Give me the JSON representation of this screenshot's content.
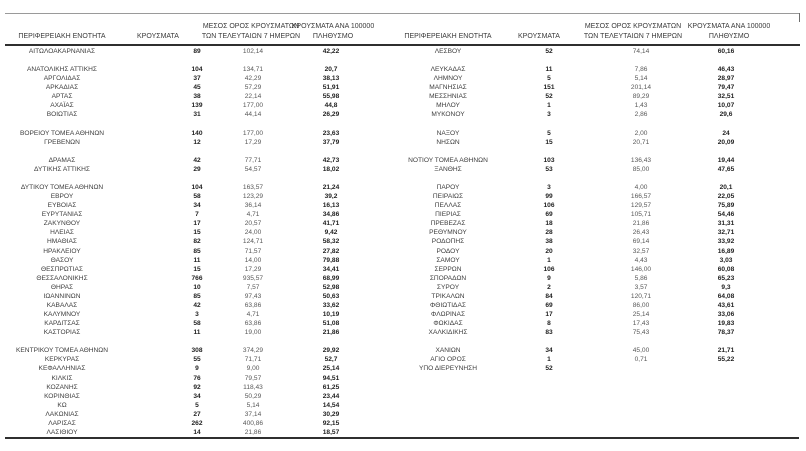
{
  "meta": {
    "description_label": "Πίνακας κατανομής κρουσμάτων ανά Περιφερειακή Ενότητα"
  },
  "colors": {
    "background": "#ffffff",
    "text": "#3d3d3d",
    "bold_text": "#1f1f1f",
    "muted_text": "#585858",
    "rule_dark": "#2f2f2f",
    "rule_light": "#9a9a9a"
  },
  "headers": {
    "region": "ΠΕΡΙΦΕΡΕΙΑΚΗ ΕΝΟΤΗΤΑ",
    "cases": "ΚΡΟΥΣΜΑΤΑ",
    "avg7_line1": "ΜΕΣΟΣ ΟΡΟΣ ΚΡΟΥΣΜΑΤΩΝ",
    "avg7_line2": "ΤΩΝ ΤΕΛΕΥΤΑΙΩΝ 7 ΗΜΕΡΩΝ",
    "per100k_line1": "ΚΡΟΥΣΜΑΤΑ ΑΝΑ 100000",
    "per100k_line2": "ΠΛΗΘΥΣΜΟ"
  },
  "left_rows": [
    [
      "ΑΙΤΩΛΟΑΚΑΡΝΑΝΙΑΣ",
      "89",
      "102,14",
      "42,22"
    ],
    null,
    [
      "ΑΝΑΤΟΛΙΚΗΣ ΑΤΤΙΚΗΣ",
      "104",
      "134,71",
      "20,7"
    ],
    [
      "ΑΡΓΟΛΙΔΑΣ",
      "37",
      "42,29",
      "38,13"
    ],
    [
      "ΑΡΚΑΔΙΑΣ",
      "45",
      "57,29",
      "51,91"
    ],
    [
      "ΑΡΤΑΣ",
      "38",
      "22,14",
      "55,98"
    ],
    [
      "ΑΧΑΪΑΣ",
      "139",
      "177,00",
      "44,8"
    ],
    [
      "ΒΟΙΩΤΙΑΣ",
      "31",
      "44,14",
      "26,29"
    ],
    null,
    [
      "ΒΟΡΕΙΟΥ ΤΟΜΕΑ ΑΘΗΝΩΝ",
      "140",
      "177,00",
      "23,63"
    ],
    [
      "ΓΡΕΒΕΝΩΝ",
      "12",
      "17,29",
      "37,79"
    ],
    null,
    [
      "ΔΡΑΜΑΣ",
      "42",
      "77,71",
      "42,73"
    ],
    [
      "ΔΥΤΙΚΗΣ ΑΤΤΙΚΗΣ",
      "29",
      "54,57",
      "18,02"
    ],
    null,
    [
      "ΔΥΤΙΚΟΥ ΤΟΜΕΑ ΑΘΗΝΩΝ",
      "104",
      "163,57",
      "21,24"
    ],
    [
      "ΕΒΡΟΥ",
      "58",
      "123,29",
      "39,2"
    ],
    [
      "ΕΥΒΟΙΑΣ",
      "34",
      "36,14",
      "16,13"
    ],
    [
      "ΕΥΡΥΤΑΝΙΑΣ",
      "7",
      "4,71",
      "34,86"
    ],
    [
      "ΖΑΚΥΝΘΟΥ",
      "17",
      "20,57",
      "41,71"
    ],
    [
      "ΗΛΕΙΑΣ",
      "15",
      "24,00",
      "9,42"
    ],
    [
      "ΗΜΑΘΙΑΣ",
      "82",
      "124,71",
      "58,32"
    ],
    [
      "ΗΡΑΚΛΕΙΟΥ",
      "85",
      "71,57",
      "27,82"
    ],
    [
      "ΘΑΣΟΥ",
      "11",
      "14,00",
      "79,88"
    ],
    [
      "ΘΕΣΠΡΩΤΙΑΣ",
      "15",
      "17,29",
      "34,41"
    ],
    [
      "ΘΕΣΣΑΛΟΝΙΚΗΣ",
      "766",
      "935,57",
      "68,99"
    ],
    [
      "ΘΗΡΑΣ",
      "10",
      "7,57",
      "52,98"
    ],
    [
      "ΙΩΑΝΝΙΝΩΝ",
      "85",
      "97,43",
      "50,63"
    ],
    [
      "ΚΑΒΑΛΑΣ",
      "42",
      "63,86",
      "33,62"
    ],
    [
      "ΚΑΛΥΜΝΟΥ",
      "3",
      "4,71",
      "10,19"
    ],
    [
      "ΚΑΡΔΙΤΣΑΣ",
      "58",
      "63,86",
      "51,08"
    ],
    [
      "ΚΑΣΤΟΡΙΑΣ",
      "11",
      "19,00",
      "21,86"
    ],
    null,
    [
      "ΚΕΝΤΡΙΚΟΥ ΤΟΜΕΑ ΑΘΗΝΩΝ",
      "308",
      "374,29",
      "29,92"
    ],
    [
      "ΚΕΡΚΥΡΑΣ",
      "55",
      "71,71",
      "52,7"
    ],
    [
      "ΚΕΦΑΛΛΗΝΙΑΣ",
      "9",
      "9,00",
      "25,14"
    ],
    [
      "ΚΙΛΚΙΣ",
      "76",
      "79,57",
      "94,51"
    ],
    [
      "ΚΟΖΑΝΗΣ",
      "92",
      "118,43",
      "61,25"
    ],
    [
      "ΚΟΡΙΝΘΙΑΣ",
      "34",
      "50,29",
      "23,44"
    ],
    [
      "ΚΩ",
      "5",
      "5,14",
      "14,54"
    ],
    [
      "ΛΑΚΩΝΙΑΣ",
      "27",
      "37,14",
      "30,29"
    ],
    [
      "ΛΑΡΙΣΑΣ",
      "262",
      "400,86",
      "92,15"
    ],
    [
      "ΛΑΣΙΘΙΟΥ",
      "14",
      "21,86",
      "18,57"
    ]
  ],
  "right_rows": [
    [
      "ΛΕΣΒΟΥ",
      "52",
      "74,14",
      "60,16"
    ],
    null,
    [
      "ΛΕΥΚΑΔΑΣ",
      "11",
      "7,86",
      "46,43"
    ],
    [
      "ΛΗΜΝΟΥ",
      "5",
      "5,14",
      "28,97"
    ],
    [
      "ΜΑΓΝΗΣΙΑΣ",
      "151",
      "201,14",
      "79,47"
    ],
    [
      "ΜΕΣΣΗΝΙΑΣ",
      "52",
      "89,29",
      "32,51"
    ],
    [
      "ΜΗΛΟΥ",
      "1",
      "1,43",
      "10,07"
    ],
    [
      "ΜΥΚΟΝΟΥ",
      "3",
      "2,86",
      "29,6"
    ],
    null,
    [
      "ΝΑΞΟΥ",
      "5",
      "2,00",
      "24"
    ],
    [
      "ΝΗΣΩΝ",
      "15",
      "20,71",
      "20,09"
    ],
    null,
    [
      "ΝΟΤΙΟΥ ΤΟΜΕΑ ΑΘΗΝΩΝ",
      "103",
      "136,43",
      "19,44"
    ],
    [
      "ΞΑΝΘΗΣ",
      "53",
      "85,00",
      "47,65"
    ],
    null,
    [
      "ΠΑΡΟΥ",
      "3",
      "4,00",
      "20,1"
    ],
    [
      "ΠΕΙΡΑΙΩΣ",
      "99",
      "166,57",
      "22,05"
    ],
    [
      "ΠΕΛΛΑΣ",
      "106",
      "129,57",
      "75,89"
    ],
    [
      "ΠΙΕΡΙΑΣ",
      "69",
      "105,71",
      "54,46"
    ],
    [
      "ΠΡΕΒΕΖΑΣ",
      "18",
      "21,86",
      "31,31"
    ],
    [
      "ΡΕΘΥΜΝΟΥ",
      "28",
      "26,43",
      "32,71"
    ],
    [
      "ΡΟΔΟΠΗΣ",
      "38",
      "69,14",
      "33,92"
    ],
    [
      "ΡΟΔΟΥ",
      "20",
      "32,57",
      "16,89"
    ],
    [
      "ΣΑΜΟΥ",
      "1",
      "4,43",
      "3,03"
    ],
    [
      "ΣΕΡΡΩΝ",
      "106",
      "146,00",
      "60,08"
    ],
    [
      "ΣΠΟΡΑΔΩΝ",
      "9",
      "5,86",
      "65,23"
    ],
    [
      "ΣΥΡΟΥ",
      "2",
      "3,57",
      "9,3"
    ],
    [
      "ΤΡΙΚΑΛΩΝ",
      "84",
      "120,71",
      "64,08"
    ],
    [
      "ΦΘΙΩΤΙΔΑΣ",
      "69",
      "86,00",
      "43,61"
    ],
    [
      "ΦΛΩΡΙΝΑΣ",
      "17",
      "25,14",
      "33,06"
    ],
    [
      "ΦΩΚΙΔΑΣ",
      "8",
      "17,43",
      "19,83"
    ],
    [
      "ΧΑΛΚΙΔΙΚΗΣ",
      "83",
      "75,43",
      "78,37"
    ],
    null,
    [
      "ΧΑΝΙΩΝ",
      "34",
      "45,00",
      "21,71"
    ],
    [
      "ΑΓΙΟ ΟΡΟΣ",
      "1",
      "0,71",
      "55,22"
    ],
    [
      "ΥΠΟ ΔΙΕΡΕΥΝΗΣΗ",
      "52",
      "",
      ""
    ]
  ]
}
